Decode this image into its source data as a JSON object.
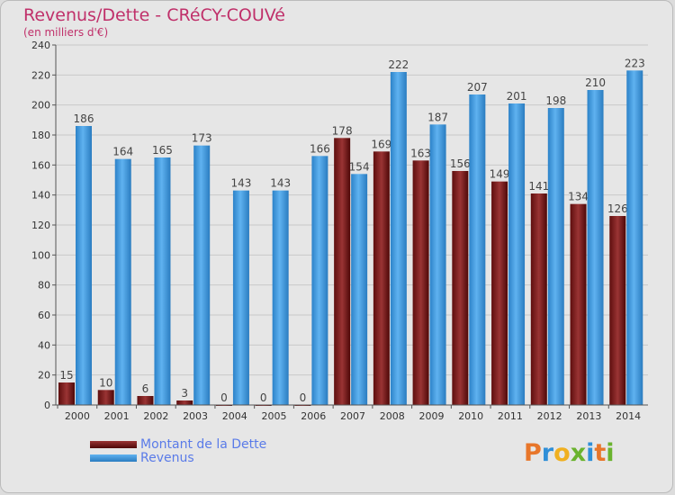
{
  "colors": {
    "dette": "#7a1a1a",
    "revenus": "#3e9ce4",
    "title": "#c0306a",
    "legend_text": "#5a7be8"
  },
  "logo": {
    "letters": [
      "P",
      "r",
      "o",
      "x",
      "i",
      "t",
      "i"
    ],
    "colors": [
      "#e8762a",
      "#2f8fd8",
      "#f0b020",
      "#6ab32e",
      "#2f8fd8",
      "#e8762a",
      "#6ab32e"
    ]
  },
  "chart_data": {
    "type": "bar",
    "title": "Revenus/Dette - CRéCY-COUVé",
    "subtitle": "(en milliers d'€)",
    "xlabel": "",
    "ylabel": "",
    "ylim": [
      0,
      240
    ],
    "yticks": [
      0,
      20,
      40,
      60,
      80,
      100,
      120,
      140,
      160,
      180,
      200,
      220,
      240
    ],
    "grid": true,
    "legend_position": "bottom-left",
    "categories": [
      "2000",
      "2001",
      "2002",
      "2003",
      "2004",
      "2005",
      "2006",
      "2007",
      "2008",
      "2009",
      "2010",
      "2011",
      "2012",
      "2013",
      "2014"
    ],
    "series": [
      {
        "name": "Montant de la Dette",
        "values": [
          15,
          10,
          6,
          3,
          0,
          0,
          0,
          178,
          169,
          163,
          156,
          149,
          141,
          134,
          126
        ]
      },
      {
        "name": "Revenus",
        "values": [
          186,
          164,
          165,
          173,
          143,
          143,
          166,
          154,
          222,
          187,
          207,
          201,
          198,
          210,
          223
        ]
      }
    ]
  }
}
